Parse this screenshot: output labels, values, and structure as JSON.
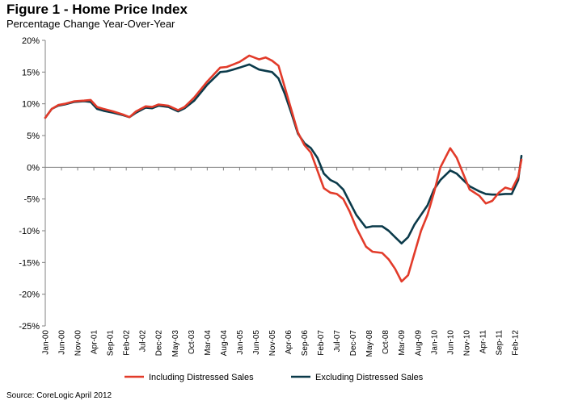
{
  "figure": {
    "title": "Figure 1 - Home Price Index",
    "subtitle": "Percentage Change Year-Over-Year",
    "source": "Source: CoreLogic April 2012"
  },
  "colors": {
    "including": "#e23b2a",
    "excluding": "#0b3a4a",
    "axis": "#808080",
    "zero_line": "#808080"
  },
  "chart_data": {
    "type": "line",
    "title": "Figure 1 - Home Price Index",
    "subtitle": "Percentage Change Year-Over-Year",
    "xlabel": "",
    "ylabel": "",
    "ylim": [
      -25,
      20
    ],
    "yticks": [
      20,
      15,
      10,
      5,
      0,
      -5,
      -10,
      -15,
      -20,
      -25
    ],
    "ytick_labels": [
      "20%",
      "15%",
      "10%",
      "5%",
      "0%",
      "-5%",
      "-10%",
      "-15%",
      "-20%",
      "-25%"
    ],
    "x_start": "Jan-00",
    "x_end": "Apr-12",
    "xtick_labels": [
      "Jan-00",
      "Jun-00",
      "Nov-00",
      "Apr-01",
      "Sep-01",
      "Feb-02",
      "Jul-02",
      "Dec-02",
      "May-03",
      "Oct-03",
      "Mar-04",
      "Aug-04",
      "Jan-05",
      "Jun-05",
      "Nov-05",
      "Apr-06",
      "Sep-06",
      "Feb-07",
      "Jul-07",
      "Dec-07",
      "May-08",
      "Oct-08",
      "Mar-09",
      "Aug-09",
      "Jan-10",
      "Jun-10",
      "Nov-10",
      "Apr-11",
      "Sep-11",
      "Feb-12"
    ],
    "grid": false,
    "legend_position": "bottom",
    "series": [
      {
        "name": "Including Distressed Sales",
        "points": [
          [
            "Jan-00",
            7.8
          ],
          [
            "Mar-00",
            9.2
          ],
          [
            "May-00",
            9.8
          ],
          [
            "Jul-00",
            10.0
          ],
          [
            "Oct-00",
            10.4
          ],
          [
            "Jan-01",
            10.5
          ],
          [
            "Mar-01",
            10.6
          ],
          [
            "May-01",
            9.5
          ],
          [
            "Jul-01",
            9.2
          ],
          [
            "Oct-01",
            8.8
          ],
          [
            "Jan-02",
            8.3
          ],
          [
            "Mar-02",
            7.9
          ],
          [
            "May-02",
            8.8
          ],
          [
            "Aug-02",
            9.6
          ],
          [
            "Oct-02",
            9.5
          ],
          [
            "Dec-02",
            9.9
          ],
          [
            "Mar-03",
            9.7
          ],
          [
            "Jun-03",
            9.0
          ],
          [
            "Aug-03",
            9.5
          ],
          [
            "Nov-03",
            11.0
          ],
          [
            "Mar-04",
            13.5
          ],
          [
            "Jul-04",
            15.7
          ],
          [
            "Sep-04",
            15.8
          ],
          [
            "Nov-04",
            16.2
          ],
          [
            "Jan-05",
            16.6
          ],
          [
            "Apr-05",
            17.6
          ],
          [
            "Jul-05",
            17.0
          ],
          [
            "Sep-05",
            17.3
          ],
          [
            "Nov-05",
            16.8
          ],
          [
            "Jan-06",
            16.0
          ],
          [
            "Mar-06",
            12.5
          ],
          [
            "May-06",
            9.0
          ],
          [
            "Jul-06",
            5.5
          ],
          [
            "Sep-06",
            3.5
          ],
          [
            "Nov-06",
            2.3
          ],
          [
            "Jan-07",
            -0.5
          ],
          [
            "Mar-07",
            -3.3
          ],
          [
            "May-07",
            -4.0
          ],
          [
            "Jul-07",
            -4.2
          ],
          [
            "Sep-07",
            -5.0
          ],
          [
            "Nov-07",
            -7.0
          ],
          [
            "Jan-08",
            -9.5
          ],
          [
            "Apr-08",
            -12.5
          ],
          [
            "Jun-08",
            -13.3
          ],
          [
            "Sep-08",
            -13.5
          ],
          [
            "Nov-08",
            -14.5
          ],
          [
            "Jan-09",
            -16.0
          ],
          [
            "Mar-09",
            -18.0
          ],
          [
            "May-09",
            -17.0
          ],
          [
            "Jul-09",
            -13.5
          ],
          [
            "Sep-09",
            -10.0
          ],
          [
            "Nov-09",
            -7.5
          ],
          [
            "Jan-10",
            -4.0
          ],
          [
            "Mar-10",
            0.0
          ],
          [
            "Jun-10",
            3.0
          ],
          [
            "Aug-10",
            1.5
          ],
          [
            "Oct-10",
            -1.0
          ],
          [
            "Dec-10",
            -3.5
          ],
          [
            "Mar-11",
            -4.5
          ],
          [
            "May-11",
            -5.7
          ],
          [
            "Jul-11",
            -5.3
          ],
          [
            "Sep-11",
            -4.0
          ],
          [
            "Nov-11",
            -3.2
          ],
          [
            "Jan-12",
            -3.5
          ],
          [
            "Mar-12",
            -1.5
          ],
          [
            "Apr-12",
            1.2
          ]
        ]
      },
      {
        "name": "Excluding Distressed Sales",
        "points": [
          [
            "Jan-00",
            7.8
          ],
          [
            "Mar-00",
            9.2
          ],
          [
            "May-00",
            9.7
          ],
          [
            "Jul-00",
            9.9
          ],
          [
            "Oct-00",
            10.3
          ],
          [
            "Jan-01",
            10.4
          ],
          [
            "Mar-01",
            10.3
          ],
          [
            "May-01",
            9.2
          ],
          [
            "Jul-01",
            8.9
          ],
          [
            "Oct-01",
            8.6
          ],
          [
            "Jan-02",
            8.2
          ],
          [
            "Mar-02",
            7.9
          ],
          [
            "May-02",
            8.6
          ],
          [
            "Aug-02",
            9.4
          ],
          [
            "Oct-02",
            9.3
          ],
          [
            "Dec-02",
            9.7
          ],
          [
            "Mar-03",
            9.5
          ],
          [
            "Jun-03",
            8.8
          ],
          [
            "Aug-03",
            9.3
          ],
          [
            "Nov-03",
            10.5
          ],
          [
            "Mar-04",
            13.0
          ],
          [
            "Jul-04",
            15.0
          ],
          [
            "Sep-04",
            15.1
          ],
          [
            "Nov-04",
            15.4
          ],
          [
            "Jan-05",
            15.7
          ],
          [
            "Apr-05",
            16.2
          ],
          [
            "Jul-05",
            15.4
          ],
          [
            "Sep-05",
            15.2
          ],
          [
            "Nov-05",
            15.0
          ],
          [
            "Jan-06",
            14.0
          ],
          [
            "Mar-06",
            11.5
          ],
          [
            "May-06",
            8.5
          ],
          [
            "Jul-06",
            5.3
          ],
          [
            "Sep-06",
            3.8
          ],
          [
            "Nov-06",
            3.0
          ],
          [
            "Jan-07",
            1.5
          ],
          [
            "Mar-07",
            -1.0
          ],
          [
            "May-07",
            -2.0
          ],
          [
            "Jul-07",
            -2.5
          ],
          [
            "Sep-07",
            -3.5
          ],
          [
            "Nov-07",
            -5.5
          ],
          [
            "Jan-08",
            -7.5
          ],
          [
            "Apr-08",
            -9.5
          ],
          [
            "Jun-08",
            -9.3
          ],
          [
            "Sep-08",
            -9.3
          ],
          [
            "Nov-08",
            -10.0
          ],
          [
            "Jan-09",
            -11.0
          ],
          [
            "Mar-09",
            -12.0
          ],
          [
            "May-09",
            -11.0
          ],
          [
            "Jul-09",
            -9.0
          ],
          [
            "Sep-09",
            -7.5
          ],
          [
            "Nov-09",
            -6.0
          ],
          [
            "Jan-10",
            -3.5
          ],
          [
            "Mar-10",
            -2.0
          ],
          [
            "Jun-10",
            -0.5
          ],
          [
            "Aug-10",
            -1.0
          ],
          [
            "Oct-10",
            -2.0
          ],
          [
            "Dec-10",
            -3.0
          ],
          [
            "Mar-11",
            -3.8
          ],
          [
            "May-11",
            -4.2
          ],
          [
            "Jul-11",
            -4.3
          ],
          [
            "Sep-11",
            -4.3
          ],
          [
            "Nov-11",
            -4.2
          ],
          [
            "Jan-12",
            -4.2
          ],
          [
            "Mar-12",
            -2.0
          ],
          [
            "Apr-12",
            1.8
          ]
        ]
      }
    ]
  }
}
